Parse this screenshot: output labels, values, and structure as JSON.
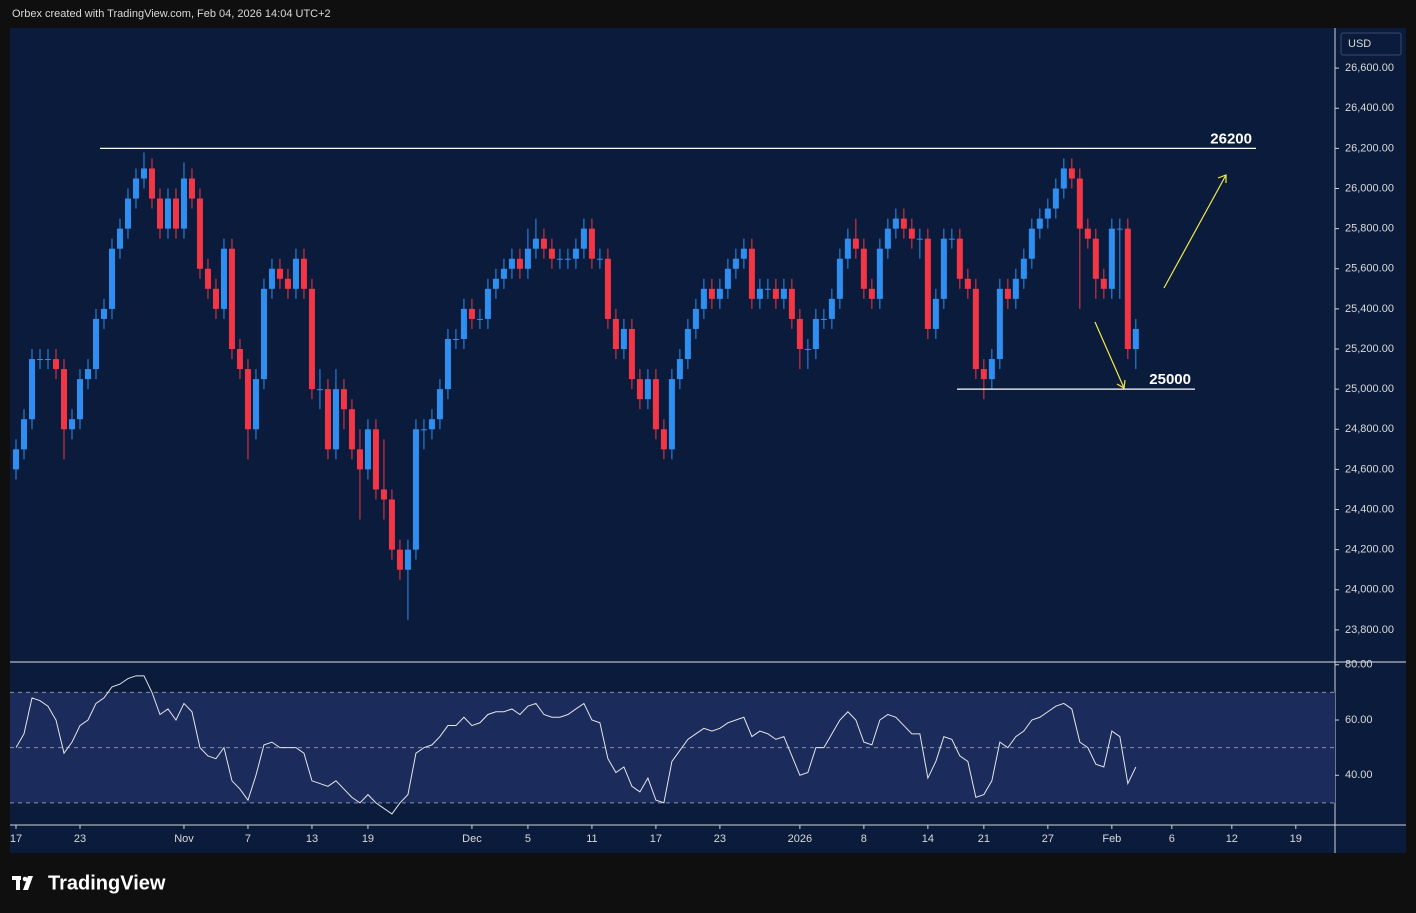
{
  "header": "Orbex created with TradingView.com, Feb 04, 2026 14:04 UTC+2",
  "brand": "TradingView",
  "chart_data": [
    {
      "type": "candlestick",
      "currency": "USD",
      "up_color": "#2e8ff0",
      "down_color": "#f23645",
      "open": [
        24600,
        24700,
        24850,
        25150,
        25150,
        25150,
        25100,
        24800,
        24850,
        25050,
        25100,
        25350,
        25400,
        25700,
        25800,
        25950,
        26050,
        26100,
        25950,
        25800,
        25950,
        25800,
        26050,
        25950,
        25600,
        25500,
        25400,
        25700,
        25200,
        25100,
        24800,
        25050,
        25500,
        25600,
        25550,
        25500,
        25650,
        25500,
        25000,
        25000,
        24700,
        25000,
        24900,
        24700,
        24600,
        24800,
        24500,
        24450,
        24200,
        24100,
        24200,
        24800,
        24800,
        24850,
        25000,
        25250,
        25250,
        25400,
        25350,
        25350,
        25500,
        25550,
        25600,
        25650,
        25600,
        25700,
        25750,
        25700,
        25650,
        25650,
        25650,
        25700,
        25800,
        25650,
        25650,
        25350,
        25200,
        25300,
        25050,
        24950,
        25050,
        24800,
        24700,
        25050,
        25150,
        25300,
        25400,
        25500,
        25450,
        25500,
        25600,
        25650,
        25700,
        25450,
        25500,
        25500,
        25450,
        25500,
        25350,
        25200,
        25200,
        25350,
        25350,
        25450,
        25650,
        25750,
        25700,
        25500,
        25450,
        25700,
        25800,
        25850,
        25800,
        25750,
        25750,
        25300,
        25450,
        25750,
        25750,
        25550,
        25500,
        25100,
        25050,
        25150,
        25500,
        25450,
        25550,
        25650,
        25800,
        25850,
        25900,
        26000,
        26100,
        26050,
        25800,
        25750,
        25550,
        25500,
        25800,
        25800,
        25200
      ],
      "high": [
        24750,
        24900,
        25200,
        25200,
        25200,
        25200,
        25150,
        24900,
        25100,
        25150,
        25400,
        25450,
        25750,
        25850,
        26000,
        26100,
        26180,
        26150,
        26000,
        26000,
        26000,
        26130,
        26100,
        26000,
        25650,
        25550,
        25750,
        25750,
        25250,
        25150,
        25100,
        25550,
        25650,
        25650,
        25600,
        25700,
        25700,
        25550,
        25100,
        25050,
        25100,
        25050,
        24950,
        24800,
        24850,
        24850,
        24750,
        24500,
        24250,
        24250,
        24850,
        24850,
        24900,
        25050,
        25300,
        25300,
        25450,
        25450,
        25400,
        25550,
        25600,
        25650,
        25700,
        25700,
        25800,
        25850,
        25800,
        25750,
        25700,
        25700,
        25750,
        25850,
        25850,
        25700,
        25700,
        25400,
        25350,
        25350,
        25100,
        25100,
        25100,
        24850,
        25100,
        25200,
        25350,
        25450,
        25550,
        25550,
        25550,
        25650,
        25700,
        25750,
        25750,
        25550,
        25550,
        25550,
        25550,
        25550,
        25400,
        25250,
        25400,
        25400,
        25500,
        25700,
        25800,
        25850,
        25750,
        25550,
        25750,
        25850,
        25900,
        25900,
        25850,
        25800,
        25800,
        25500,
        25800,
        25800,
        25800,
        25600,
        25550,
        25150,
        25200,
        25550,
        25550,
        25600,
        25700,
        25850,
        25900,
        25950,
        26050,
        26150,
        26150,
        26100,
        25850,
        25800,
        25600,
        25850,
        25850,
        25850,
        25350
      ],
      "low": [
        24550,
        24650,
        24800,
        25100,
        25100,
        25050,
        24650,
        24750,
        24800,
        25000,
        25050,
        25300,
        25350,
        25650,
        25750,
        25900,
        26000,
        25900,
        25750,
        25750,
        25750,
        25750,
        25900,
        25550,
        25450,
        25350,
        25350,
        25150,
        25050,
        24650,
        24750,
        25000,
        25450,
        25500,
        25450,
        25450,
        25450,
        24950,
        24900,
        24650,
        24650,
        24800,
        24650,
        24350,
        24550,
        24450,
        24350,
        24150,
        24050,
        23850,
        24150,
        24700,
        24750,
        24800,
        24950,
        25200,
        25200,
        25300,
        25300,
        25300,
        25450,
        25500,
        25550,
        25550,
        25550,
        25650,
        25650,
        25600,
        25600,
        25600,
        25600,
        25650,
        25600,
        25600,
        25300,
        25150,
        25150,
        25000,
        24900,
        24900,
        24750,
        24650,
        24650,
        25000,
        25100,
        25250,
        25350,
        25400,
        25400,
        25450,
        25550,
        25600,
        25400,
        25400,
        25450,
        25400,
        25400,
        25300,
        25100,
        25100,
        25150,
        25300,
        25300,
        25400,
        25600,
        25650,
        25450,
        25400,
        25400,
        25650,
        25750,
        25750,
        25700,
        25650,
        25250,
        25250,
        25400,
        25700,
        25500,
        25450,
        25050,
        24950,
        25000,
        25100,
        25400,
        25400,
        25500,
        25600,
        25750,
        25800,
        25850,
        25950,
        26000,
        25400,
        25700,
        25450,
        25450,
        25450,
        25450,
        25150,
        25100
      ],
      "close": [
        24700,
        24850,
        25150,
        25150,
        25150,
        25100,
        24800,
        24850,
        25050,
        25100,
        25350,
        25400,
        25700,
        25800,
        25950,
        26050,
        26100,
        25950,
        25800,
        25950,
        25800,
        26050,
        25950,
        25600,
        25500,
        25400,
        25700,
        25200,
        25100,
        24800,
        25050,
        25500,
        25600,
        25550,
        25500,
        25650,
        25500,
        25000,
        25000,
        24700,
        25000,
        24900,
        24700,
        24600,
        24800,
        24500,
        24450,
        24200,
        24100,
        24200,
        24800,
        24800,
        24850,
        25000,
        25250,
        25250,
        25400,
        25350,
        25350,
        25500,
        25550,
        25600,
        25650,
        25600,
        25700,
        25750,
        25700,
        25650,
        25650,
        25650,
        25700,
        25800,
        25650,
        25650,
        25350,
        25200,
        25300,
        25050,
        24950,
        25050,
        24800,
        24700,
        25050,
        25150,
        25300,
        25400,
        25500,
        25450,
        25500,
        25600,
        25650,
        25700,
        25450,
        25500,
        25500,
        25450,
        25500,
        25350,
        25200,
        25200,
        25350,
        25350,
        25450,
        25650,
        25750,
        25700,
        25500,
        25450,
        25700,
        25800,
        25850,
        25800,
        25750,
        25750,
        25300,
        25450,
        25750,
        25750,
        25550,
        25500,
        25100,
        25050,
        25150,
        25500,
        25450,
        25550,
        25650,
        25800,
        25850,
        25900,
        26000,
        26100,
        26050,
        25800,
        25750,
        25550,
        25500,
        25800,
        25800,
        25200,
        25300
      ],
      "levels": [
        26200,
        25000
      ],
      "xlim": [
        -0.75,
        164.9
      ],
      "xticks": [
        {
          "value": 0,
          "label": "17"
        },
        {
          "value": 8,
          "label": "23"
        },
        {
          "value": 21,
          "label": "Nov"
        },
        {
          "value": 29,
          "label": "7"
        },
        {
          "value": 37,
          "label": "13"
        },
        {
          "value": 44,
          "label": "19"
        },
        {
          "value": 57,
          "label": "Dec"
        },
        {
          "value": 64,
          "label": "5"
        },
        {
          "value": 72,
          "label": "11"
        },
        {
          "value": 80,
          "label": "17"
        },
        {
          "value": 88,
          "label": "23"
        },
        {
          "value": 98,
          "label": "2026"
        },
        {
          "value": 106,
          "label": "8"
        },
        {
          "value": 114,
          "label": "14"
        },
        {
          "value": 121,
          "label": "21"
        },
        {
          "value": 129,
          "label": "27"
        },
        {
          "value": 137,
          "label": "Feb"
        },
        {
          "value": 144.5,
          "label": "6"
        },
        {
          "value": 152,
          "label": "12"
        },
        {
          "value": 160,
          "label": "19"
        }
      ],
      "ylim": [
        23640,
        26800
      ],
      "yticks": [
        {
          "value": 23800,
          "label": "23,800.00"
        },
        {
          "value": 24000,
          "label": "24,000.00"
        },
        {
          "value": 24200,
          "label": "24,200.00"
        },
        {
          "value": 24400,
          "label": "24,400.00"
        },
        {
          "value": 24600,
          "label": "24,600.00"
        },
        {
          "value": 24800,
          "label": "24,800.00"
        },
        {
          "value": 25000,
          "label": "25,000.00"
        },
        {
          "value": 25200,
          "label": "25,200.00"
        },
        {
          "value": 25400,
          "label": "25,400.00"
        },
        {
          "value": 25600,
          "label": "25,600.00"
        },
        {
          "value": 25800,
          "label": "25,800.00"
        },
        {
          "value": 26000,
          "label": "26,000.00"
        },
        {
          "value": 26200,
          "label": "26,200.00"
        },
        {
          "value": 26400,
          "label": "26,400.00"
        },
        {
          "value": 26600,
          "label": "26,600.00"
        }
      ]
    },
    {
      "type": "line",
      "color": "#e6e6e6",
      "values": [
        50,
        55,
        68,
        67,
        65,
        60,
        48,
        52,
        58,
        60,
        66,
        68,
        72,
        73,
        75,
        76,
        76,
        70,
        62,
        64,
        60,
        66,
        63,
        50,
        47,
        46,
        50,
        38,
        35,
        31,
        40,
        51,
        52,
        50,
        50,
        50,
        48,
        38,
        37,
        36,
        38,
        35,
        32,
        30,
        33,
        30,
        28,
        26,
        30,
        33,
        48,
        50,
        51,
        54,
        58,
        58,
        61,
        58,
        59,
        62,
        63,
        63,
        64,
        62,
        65,
        66,
        62,
        61,
        61,
        62,
        64,
        66,
        60,
        59,
        46,
        41,
        43,
        36,
        34,
        39,
        31,
        30,
        45,
        49,
        53,
        55,
        57,
        56,
        57,
        59,
        60,
        61,
        54,
        56,
        55,
        53,
        54,
        47,
        40,
        41,
        50,
        50,
        55,
        60,
        63,
        60,
        52,
        51,
        60,
        62,
        61,
        58,
        55,
        55,
        39,
        45,
        54,
        53,
        47,
        45,
        32,
        33,
        38,
        52,
        50,
        54,
        56,
        60,
        61,
        63,
        65,
        66,
        64,
        52,
        50,
        44,
        43,
        56,
        54,
        37,
        43
      ],
      "levels": [
        70,
        50,
        30
      ],
      "ylim": [
        22,
        81
      ],
      "yticks": [
        {
          "value": 40,
          "label": "40.00"
        },
        {
          "value": 60,
          "label": "60.00"
        },
        {
          "value": 80,
          "label": "80.00"
        }
      ]
    }
  ]
}
